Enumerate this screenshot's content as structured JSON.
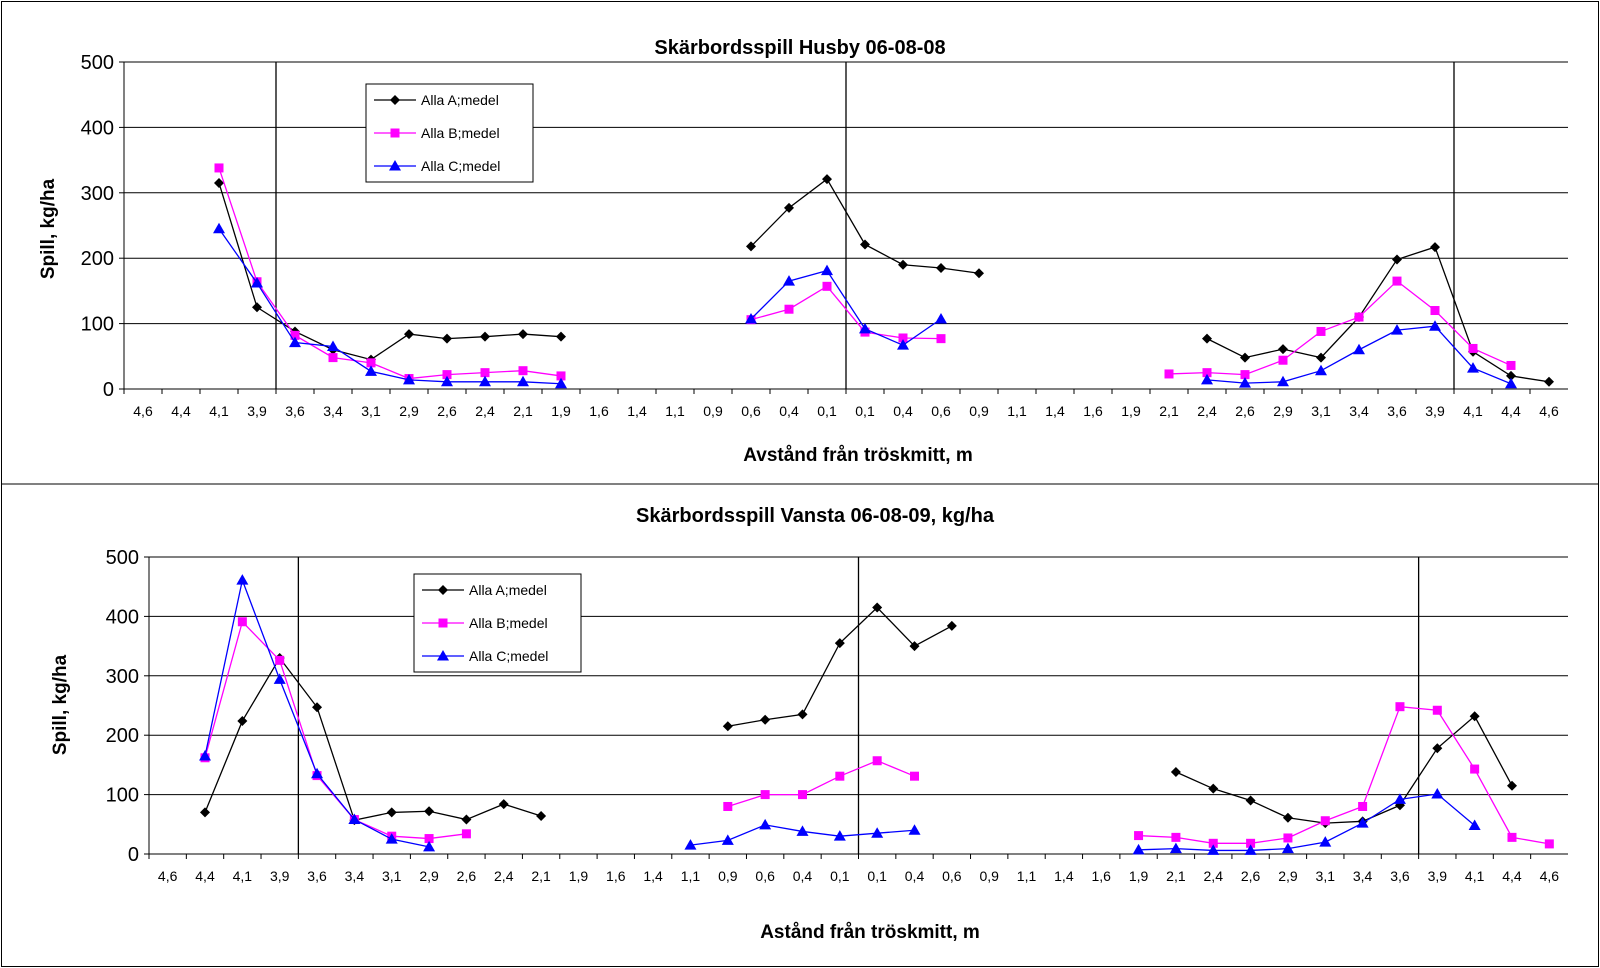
{
  "chart_data": [
    {
      "type": "line",
      "title": "Skärbordsspill Husby 06-08-08",
      "xlabel": "Avstånd från tröskmitt, m",
      "ylabel": "Spill, kg/ha",
      "ylim": [
        0,
        500
      ],
      "yticks": [
        "0",
        "100",
        "200",
        "300",
        "400",
        "500"
      ],
      "grid": true,
      "legend": "top-left",
      "categories": [
        "4,6",
        "4,4",
        "4,1",
        "3,9",
        "3,6",
        "3,4",
        "3,1",
        "2,9",
        "2,6",
        "2,4",
        "2,1",
        "1,9",
        "1,6",
        "1,4",
        "1,1",
        "0,9",
        "0,6",
        "0,4",
        "0,1",
        "0,1",
        "0,4",
        "0,6",
        "0,9",
        "1,1",
        "1,4",
        "1,6",
        "1,9",
        "2,1",
        "2,4",
        "2,6",
        "2,9",
        "3,1",
        "3,4",
        "3,6",
        "3,9",
        "4,1",
        "4,4",
        "4,6"
      ],
      "series": [
        {
          "name": "Alla A;medel",
          "color": "#000000",
          "marker": "diamond",
          "values": [
            null,
            null,
            315,
            125,
            88,
            60,
            45,
            84,
            77,
            80,
            84,
            80,
            null,
            null,
            null,
            null,
            218,
            277,
            321,
            221,
            190,
            185,
            177,
            null,
            null,
            null,
            null,
            null,
            77,
            48,
            61,
            48,
            110,
            198,
            217,
            57,
            20,
            11
          ]
        },
        {
          "name": "Alla B;medel",
          "color": "#ff00ff",
          "marker": "square",
          "values": [
            null,
            null,
            338,
            164,
            82,
            48,
            40,
            16,
            22,
            25,
            28,
            20,
            null,
            null,
            null,
            null,
            106,
            122,
            157,
            87,
            78,
            77,
            null,
            null,
            null,
            null,
            null,
            23,
            25,
            22,
            44,
            88,
            110,
            165,
            120,
            62,
            36,
            null
          ]
        },
        {
          "name": "Alla C;medel",
          "color": "#0000ff",
          "marker": "triangle",
          "values": [
            null,
            null,
            245,
            162,
            71,
            65,
            27,
            14,
            11,
            11,
            11,
            8,
            null,
            null,
            null,
            null,
            107,
            165,
            181,
            92,
            67,
            107,
            null,
            null,
            null,
            null,
            null,
            null,
            14,
            9,
            11,
            28,
            60,
            90,
            96,
            32,
            8,
            null
          ]
        }
      ],
      "vlines_after_index": [
        3.5,
        18.5,
        34.5
      ]
    },
    {
      "type": "line",
      "title": "Skärbordsspill Vansta 06-08-09, kg/ha",
      "xlabel": "Astånd från tröskmitt, m",
      "ylabel": "Spill, kg/ha",
      "ylim": [
        0,
        500
      ],
      "yticks": [
        "0",
        "100",
        "200",
        "300",
        "400",
        "500"
      ],
      "grid": true,
      "legend": "top-left",
      "categories": [
        "4,6",
        "4,4",
        "4,1",
        "3,9",
        "3,6",
        "3,4",
        "3,1",
        "2,9",
        "2,6",
        "2,4",
        "2,1",
        "1,9",
        "1,6",
        "1,4",
        "1,1",
        "0,9",
        "0,6",
        "0,4",
        "0,1",
        "0,1",
        "0,4",
        "0,6",
        "0,9",
        "1,1",
        "1,4",
        "1,6",
        "1,9",
        "2,1",
        "2,4",
        "2,6",
        "2,9",
        "3,1",
        "3,4",
        "3,6",
        "3,9",
        "4,1",
        "4,4",
        "4,6"
      ],
      "series": [
        {
          "name": "Alla A;medel",
          "color": "#000000",
          "marker": "diamond",
          "values": [
            null,
            70,
            224,
            330,
            247,
            57,
            70,
            72,
            58,
            84,
            64,
            null,
            null,
            null,
            null,
            215,
            226,
            235,
            355,
            415,
            350,
            384,
            null,
            null,
            null,
            null,
            null,
            138,
            110,
            90,
            61,
            52,
            55,
            82,
            178,
            232,
            115,
            null
          ]
        },
        {
          "name": "Alla B;medel",
          "color": "#ff00ff",
          "marker": "square",
          "values": [
            null,
            162,
            391,
            326,
            132,
            58,
            30,
            26,
            34,
            null,
            null,
            null,
            null,
            null,
            null,
            80,
            100,
            100,
            131,
            157,
            131,
            null,
            null,
            null,
            null,
            null,
            31,
            28,
            18,
            18,
            27,
            56,
            80,
            248,
            242,
            143,
            28,
            17
          ]
        },
        {
          "name": "Alla C;medel",
          "color": "#0000ff",
          "marker": "triangle",
          "values": [
            null,
            165,
            461,
            294,
            135,
            58,
            25,
            12,
            null,
            null,
            null,
            null,
            null,
            null,
            15,
            23,
            49,
            38,
            30,
            35,
            40,
            null,
            null,
            null,
            null,
            null,
            7,
            9,
            6,
            6,
            9,
            20,
            52,
            92,
            101,
            48,
            null,
            null
          ]
        }
      ],
      "vlines_after_index": [
        3.5,
        18.5,
        33.5
      ]
    }
  ]
}
